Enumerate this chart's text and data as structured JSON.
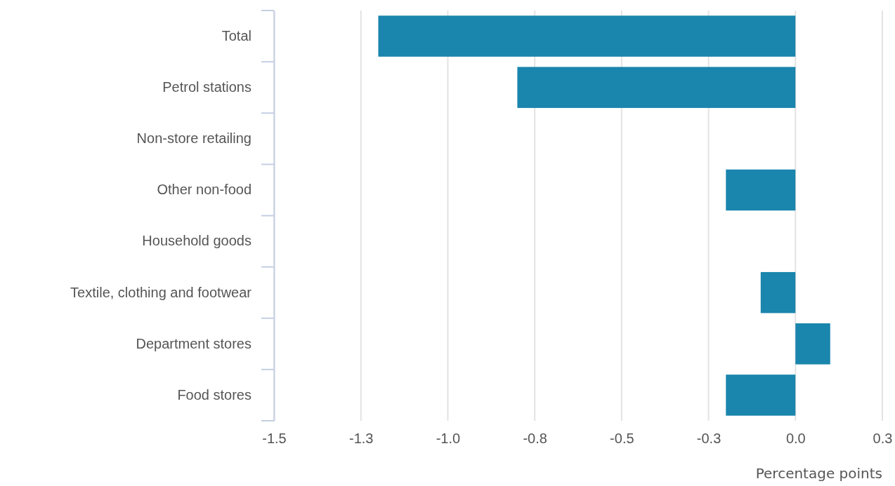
{
  "chart_data": {
    "type": "bar",
    "orientation": "horizontal",
    "xlabel": "Percentage points",
    "categories": [
      "Total",
      "Petrol stations",
      "Non-store retailing",
      "Other non-food",
      "Household goods",
      "Textile, clothing and footwear",
      "Department stores",
      "Food stores"
    ],
    "values": [
      -1.2,
      -0.8,
      0,
      -0.2,
      0,
      -0.1,
      0.1,
      -0.2
    ],
    "color": "#1a85ad",
    "xlim": [
      -1.5,
      0.25
    ],
    "xticks": [
      {
        "value": -1.5,
        "label": "-1.5"
      },
      {
        "value": -1.25,
        "label": "-1.3"
      },
      {
        "value": -1.0,
        "label": "-1.0"
      },
      {
        "value": -0.75,
        "label": "-0.8"
      },
      {
        "value": -0.5,
        "label": "-0.5"
      },
      {
        "value": -0.25,
        "label": "-0.3"
      },
      {
        "value": 0.0,
        "label": "0.0"
      },
      {
        "value": 0.25,
        "label": "0.3"
      }
    ],
    "grid": "x"
  }
}
